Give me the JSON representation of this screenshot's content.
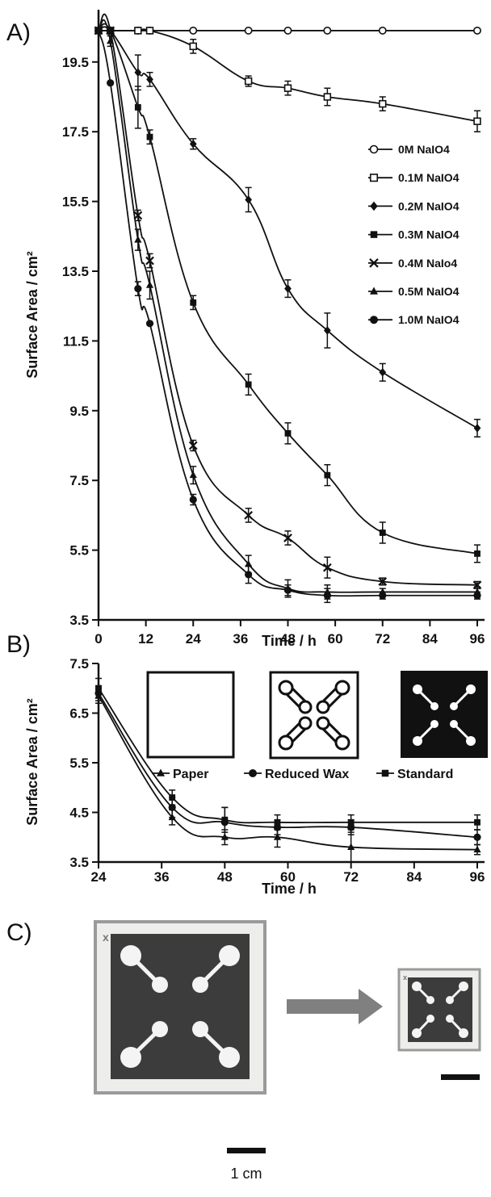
{
  "panels": {
    "a": "A)",
    "b": "B)",
    "c": "C)"
  },
  "colors": {
    "ink": "#111111",
    "arrow": "#808080",
    "pad_dark": "#3b3b3b",
    "pad_paper": "#f3f3f1"
  },
  "photo": {
    "scale_label": "1 cm",
    "pad_mark": "x"
  },
  "chart_data": [
    {
      "type": "line",
      "panel": "A",
      "xlabel": "Time / h",
      "ylabel": "Surface Area / cm²",
      "xlim": [
        0,
        98
      ],
      "ylim": [
        3.5,
        21
      ],
      "xticks": [
        0,
        12,
        24,
        36,
        48,
        60,
        72,
        84,
        96
      ],
      "yticks": [
        3.5,
        5.5,
        7.5,
        9.5,
        11.5,
        13.5,
        15.5,
        17.5,
        19.5
      ],
      "legend_position": "right",
      "series": [
        {
          "name": "0M NaIO4",
          "marker": "open-circle",
          "x": [
            0,
            3,
            10,
            13,
            24,
            38,
            48,
            58,
            72,
            96
          ],
          "y": [
            20.4,
            20.4,
            20.4,
            20.4,
            20.4,
            20.4,
            20.4,
            20.4,
            20.4,
            20.4
          ],
          "err": [
            0,
            0,
            0,
            0,
            0,
            0,
            0,
            0,
            0,
            0
          ]
        },
        {
          "name": "0.1M NaIO4",
          "marker": "open-square",
          "x": [
            0,
            3,
            10,
            13,
            24,
            38,
            48,
            58,
            72,
            96
          ],
          "y": [
            20.4,
            20.4,
            20.4,
            20.4,
            19.95,
            18.95,
            18.75,
            18.5,
            18.3,
            17.8
          ],
          "err": [
            0,
            0,
            0,
            0,
            0.2,
            0.15,
            0.2,
            0.25,
            0.2,
            0.3
          ]
        },
        {
          "name": "0.2M NaIO4",
          "marker": "filled-diamond",
          "x": [
            0,
            3,
            10,
            13,
            24,
            38,
            48,
            58,
            72,
            96
          ],
          "y": [
            20.4,
            20.4,
            19.2,
            19.0,
            17.15,
            15.55,
            13.0,
            11.8,
            10.6,
            9.0
          ],
          "err": [
            0,
            0,
            0.5,
            0.2,
            0.15,
            0.35,
            0.25,
            0.5,
            0.25,
            0.25
          ]
        },
        {
          "name": "0.3M NaIO4",
          "marker": "filled-square",
          "x": [
            0,
            3,
            10,
            13,
            24,
            38,
            48,
            58,
            72,
            96
          ],
          "y": [
            20.4,
            20.4,
            18.2,
            17.35,
            12.6,
            10.25,
            8.85,
            7.65,
            6.0,
            5.4
          ],
          "err": [
            0,
            0,
            0.6,
            0.2,
            0.2,
            0.3,
            0.3,
            0.3,
            0.3,
            0.25
          ]
        },
        {
          "name": "0.4M NaIo4",
          "marker": "x",
          "x": [
            0,
            3,
            10,
            13,
            24,
            38,
            48,
            58,
            72,
            96
          ],
          "y": [
            20.4,
            20.4,
            15.1,
            13.8,
            8.5,
            6.5,
            5.85,
            5.0,
            4.6,
            4.5
          ],
          "err": [
            0,
            0,
            0.15,
            0.2,
            0.15,
            0.2,
            0.2,
            0.3,
            0.1,
            0.1
          ]
        },
        {
          "name": "0.5M NaIO4",
          "marker": "filled-triangle",
          "x": [
            0,
            3,
            10,
            13,
            24,
            38,
            48,
            58,
            72,
            96
          ],
          "y": [
            20.4,
            20.1,
            14.4,
            13.1,
            7.65,
            5.1,
            4.4,
            4.3,
            4.3,
            4.3
          ],
          "err": [
            0,
            0.15,
            0.3,
            0.4,
            0.25,
            0.25,
            0.25,
            0.2,
            0.1,
            0.15
          ]
        },
        {
          "name": "1.0M NaIO4",
          "marker": "filled-circle",
          "x": [
            0,
            3,
            10,
            13,
            24,
            38,
            48,
            58,
            72,
            96
          ],
          "y": [
            20.4,
            18.9,
            13.0,
            12.0,
            6.95,
            4.8,
            4.35,
            4.2,
            4.2,
            4.2
          ],
          "err": [
            0,
            0,
            0.2,
            0,
            0.15,
            0.25,
            0.15,
            0.2,
            0.1,
            0.1
          ]
        }
      ]
    },
    {
      "type": "line",
      "panel": "B",
      "xlabel": "Time / h",
      "ylabel": "Surface Area / cm²",
      "xlim": [
        24,
        98
      ],
      "ylim": [
        3.5,
        7.5
      ],
      "xticks": [
        24,
        36,
        48,
        60,
        72,
        84,
        96
      ],
      "yticks": [
        3.5,
        4.5,
        5.5,
        6.5,
        7.5
      ],
      "legend_position": "top (below pad icons)",
      "series": [
        {
          "name": "Paper",
          "marker": "filled-triangle",
          "icon": "blank-square",
          "x": [
            24,
            38,
            48,
            58,
            72,
            96
          ],
          "y": [
            6.85,
            4.4,
            4.0,
            4.0,
            3.8,
            3.75
          ],
          "err": [
            0.15,
            0.15,
            0.15,
            0.2,
            0.3,
            0.1
          ]
        },
        {
          "name": "Reduced Wax",
          "marker": "filled-circle",
          "icon": "outlined-pattern",
          "x": [
            24,
            38,
            48,
            58,
            72,
            96
          ],
          "y": [
            6.9,
            4.6,
            4.3,
            4.2,
            4.2,
            4.0
          ],
          "err": [
            0.15,
            0.2,
            0.3,
            0.15,
            0.15,
            0.15
          ]
        },
        {
          "name": "Standard",
          "marker": "filled-square",
          "icon": "solid-pattern",
          "x": [
            24,
            38,
            48,
            58,
            72,
            96
          ],
          "y": [
            7.0,
            4.8,
            4.35,
            4.3,
            4.3,
            4.3
          ],
          "err": [
            0.2,
            0.15,
            0.25,
            0.15,
            0.15,
            0.15
          ]
        }
      ]
    }
  ]
}
